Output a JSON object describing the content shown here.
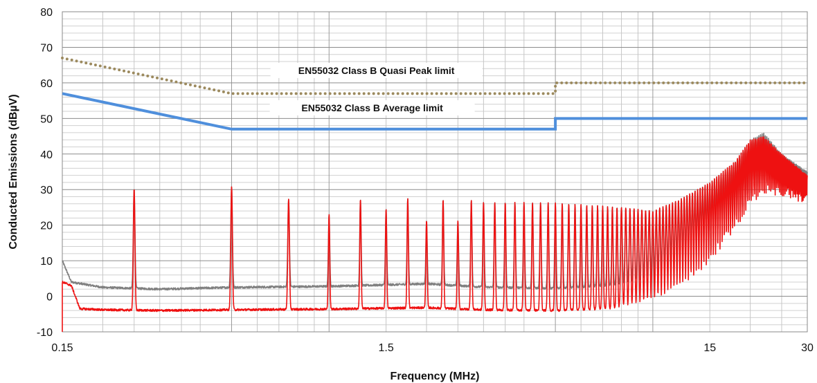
{
  "chart_data": {
    "type": "line",
    "xlabel": "Frequency (MHz)",
    "ylabel": "Conducted Emissions (dBµV)",
    "x_scale": "log",
    "xlim": [
      0.15,
      30
    ],
    "ylim": [
      -10,
      80
    ],
    "y_ticks": [
      -10,
      0,
      10,
      20,
      30,
      40,
      50,
      60,
      70,
      80
    ],
    "x_ticks": [
      {
        "value": 0.15,
        "label": "0.15"
      },
      {
        "value": 1.5,
        "label": "1.5"
      },
      {
        "value": 15,
        "label": "15"
      },
      {
        "value": 30,
        "label": "30"
      }
    ],
    "grid": true,
    "annotations": [
      {
        "text": "EN55032 Class B Quasi Peak limit",
        "x": 1.5,
        "y": 63.5
      },
      {
        "text": "EN55032 Class B Average limit",
        "x": 1.5,
        "y": 53.0
      }
    ],
    "series": [
      {
        "color": "#9c8a5e",
        "style": "dotted",
        "points": [
          [
            0.15,
            67
          ],
          [
            0.5,
            57
          ],
          [
            5,
            57
          ],
          [
            5,
            60
          ],
          [
            30,
            60
          ]
        ]
      },
      {
        "color": "#4f8fdc",
        "style": "solid",
        "points": [
          [
            0.15,
            57
          ],
          [
            0.5,
            47
          ],
          [
            5,
            47
          ],
          [
            5,
            50
          ],
          [
            30,
            50
          ]
        ]
      },
      {
        "color": "#808080",
        "style": "solid",
        "description_free": true,
        "baseline_points": [
          [
            0.15,
            10
          ],
          [
            0.16,
            4
          ],
          [
            0.2,
            2.5
          ],
          [
            0.3,
            2
          ],
          [
            0.5,
            2.5
          ],
          [
            1.0,
            2.8
          ],
          [
            2.0,
            3.5
          ],
          [
            3.0,
            2.6
          ],
          [
            5.0,
            2.2
          ],
          [
            10.0,
            3.8
          ],
          [
            20.0,
            8
          ],
          [
            25.0,
            10
          ],
          [
            30.0,
            6
          ]
        ],
        "peak_points": [
          [
            0.25,
            30.2
          ],
          [
            0.5,
            30.8
          ],
          [
            0.75,
            27.3
          ],
          [
            1.0,
            23
          ],
          [
            1.25,
            27.3
          ],
          [
            1.5,
            24.5
          ],
          [
            1.75,
            27.5
          ],
          [
            2.0,
            21.3
          ],
          [
            2.25,
            27.2
          ],
          [
            2.5,
            21.2
          ],
          [
            2.75,
            27.0
          ],
          [
            3.0,
            26.5
          ],
          [
            5.0,
            26.3
          ],
          [
            8.0,
            25.0
          ],
          [
            10.0,
            24.0
          ],
          [
            12.0,
            27.0
          ],
          [
            15.0,
            32.0
          ],
          [
            18.0,
            38.0
          ],
          [
            20.0,
            44.0
          ],
          [
            22.0,
            46.0
          ],
          [
            25.0,
            40.0
          ],
          [
            30.0,
            35.0
          ]
        ]
      },
      {
        "color": "#ee1111",
        "style": "solid",
        "baseline_points": [
          [
            0.15,
            4
          ],
          [
            0.16,
            3
          ],
          [
            0.17,
            -3.5
          ],
          [
            0.2,
            -3.8
          ],
          [
            0.3,
            -4
          ],
          [
            0.5,
            -3.8
          ],
          [
            1.0,
            -3.6
          ],
          [
            2.0,
            -3.2
          ],
          [
            3.0,
            -3.8
          ],
          [
            5.0,
            -4.0
          ],
          [
            10.0,
            -3.0
          ],
          [
            15.0,
            -2.5
          ],
          [
            20.0,
            3.0
          ],
          [
            25.0,
            1.0
          ],
          [
            30.0,
            -1.5
          ]
        ],
        "peak_points": [
          [
            0.25,
            30.2
          ],
          [
            0.5,
            30.8
          ],
          [
            0.75,
            27.3
          ],
          [
            1.0,
            23
          ],
          [
            1.25,
            27.3
          ],
          [
            1.5,
            24.5
          ],
          [
            1.75,
            27.5
          ],
          [
            2.0,
            21.3
          ],
          [
            2.25,
            27.2
          ],
          [
            2.5,
            21.2
          ],
          [
            2.75,
            27.0
          ],
          [
            3.0,
            26.5
          ],
          [
            5.0,
            26.3
          ],
          [
            8.0,
            25.0
          ],
          [
            10.0,
            24.0
          ],
          [
            12.0,
            27.0
          ],
          [
            15.0,
            32.0
          ],
          [
            18.0,
            38.0
          ],
          [
            20.0,
            44.0
          ],
          [
            22.0,
            45.0
          ],
          [
            25.0,
            40.0
          ],
          [
            30.0,
            34.0
          ]
        ],
        "fundamental_mhz": 0.25
      }
    ]
  }
}
